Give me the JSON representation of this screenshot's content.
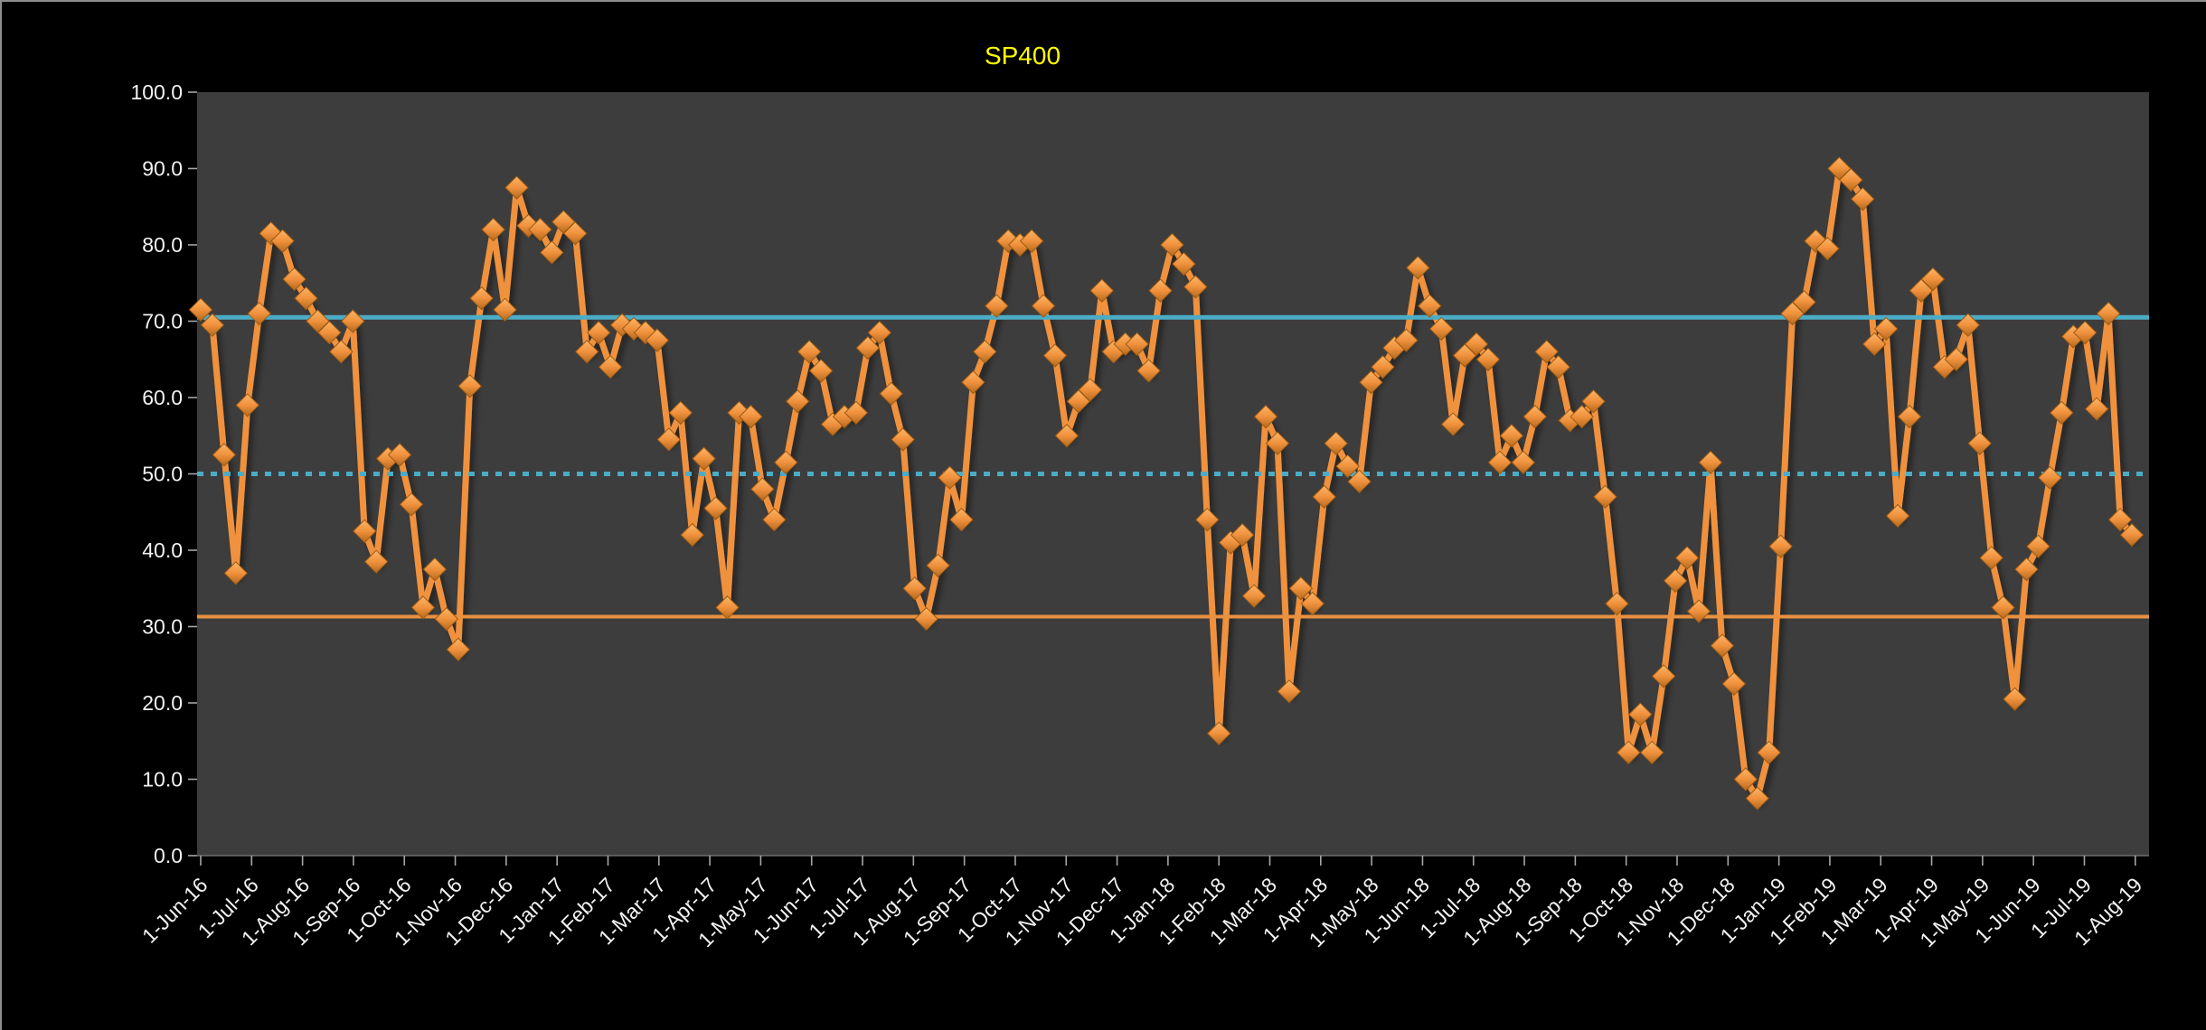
{
  "window": {
    "border_color": "#8E8E8E",
    "background": "#000000"
  },
  "chart_data": {
    "type": "line",
    "title": "SP400",
    "title_color": "#FFFF00",
    "outer_background": "#000000",
    "plot_background": "#3D3D3D",
    "axis_text_color": "#F2F2F2",
    "tick_color": "#A6A6A6",
    "grid": "off",
    "legend": "none",
    "ylim": [
      0,
      100
    ],
    "y_tick_step": 10,
    "y_tick_labels": [
      "0.0",
      "10.0",
      "20.0",
      "30.0",
      "40.0",
      "50.0",
      "60.0",
      "70.0",
      "80.0",
      "90.0",
      "100.0"
    ],
    "x_unit": "weekly points, monthly tick labels",
    "x_tick_labels": [
      "1-Jun-16",
      "1-Jul-16",
      "1-Aug-16",
      "1-Sep-16",
      "1-Oct-16",
      "1-Nov-16",
      "1-Dec-16",
      "1-Jan-17",
      "1-Feb-17",
      "1-Mar-17",
      "1-Apr-17",
      "1-May-17",
      "1-Jun-17",
      "1-Jul-17",
      "1-Aug-17",
      "1-Sep-17",
      "1-Oct-17",
      "1-Nov-17",
      "1-Dec-17",
      "1-Jan-18",
      "1-Feb-18",
      "1-Mar-18",
      "1-Apr-18",
      "1-May-18",
      "1-Jun-18",
      "1-Jul-18",
      "1-Aug-18",
      "1-Sep-18",
      "1-Oct-18",
      "1-Nov-18",
      "1-Dec-18",
      "1-Jan-19",
      "1-Feb-19",
      "1-Mar-19",
      "1-Apr-19",
      "1-May-19",
      "1-Jun-19",
      "1-Jul-19",
      "1-Aug-19"
    ],
    "reference_lines": [
      {
        "name": "upper-band",
        "value": 70.5,
        "color": "#4BACC6",
        "style": "solid",
        "width": 5
      },
      {
        "name": "mid-band",
        "value": 50,
        "color": "#4BACC6",
        "style": "dotted",
        "width": 5
      },
      {
        "name": "lower-band",
        "value": 31.3,
        "color": "#E8913F",
        "style": "solid",
        "width": 4
      }
    ],
    "marker_gradient": [
      "#FCB565",
      "#F0913D",
      "#B4691C"
    ],
    "marker_edge": "#9C5A12",
    "series": [
      {
        "name": "SP400",
        "color": "#F0913D",
        "marker": "diamond",
        "values": [
          71.5,
          69.5,
          52.5,
          37,
          59,
          71,
          81.5,
          80.5,
          75.5,
          73,
          70,
          68.5,
          66,
          70,
          42.5,
          38.5,
          52,
          52.5,
          46,
          32.5,
          37.5,
          31,
          27,
          61.5,
          73,
          82,
          71.5,
          87.5,
          82.5,
          82,
          79,
          83,
          81.5,
          66,
          68.5,
          64,
          69.5,
          69,
          68.5,
          67.5,
          54.5,
          58,
          42,
          52,
          45.5,
          32.5,
          58,
          57.5,
          48,
          44,
          51.5,
          59.5,
          66,
          63.5,
          56.5,
          57.5,
          58,
          66.5,
          68.5,
          60.5,
          54.5,
          35,
          31,
          38,
          49.5,
          44,
          62,
          66,
          72,
          80.5,
          80,
          80.5,
          72,
          65.5,
          55,
          59.5,
          61,
          74,
          66,
          67,
          67,
          63.5,
          74,
          80,
          77.5,
          74.5,
          44,
          16,
          41,
          42,
          34,
          57.5,
          54,
          21.5,
          35,
          33,
          47,
          54,
          51,
          49,
          62,
          64,
          66.5,
          67.5,
          77,
          72,
          69,
          56.5,
          65.5,
          67,
          65,
          51.5,
          55,
          51.5,
          57.5,
          66,
          64,
          57,
          57.5,
          59.5,
          47,
          33,
          13.5,
          18.5,
          13.5,
          23.5,
          36,
          39,
          32,
          51.5,
          27.5,
          22.5,
          10,
          7.5,
          13.5,
          40.5,
          71,
          72.5,
          80.5,
          79.5,
          90,
          88.5,
          86,
          67,
          69,
          44.5,
          57.5,
          74,
          75.5,
          64,
          65,
          69.5,
          54,
          39,
          32.5,
          20.5,
          37.5,
          40.5,
          49.5,
          58,
          68,
          68.5,
          58.5,
          71,
          44,
          42
        ]
      }
    ]
  }
}
